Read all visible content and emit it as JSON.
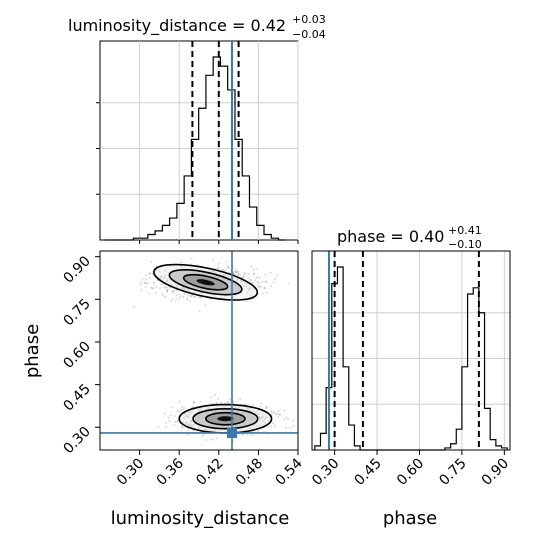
{
  "chart_data": [
    {
      "type": "histogram",
      "panel": "luminosity_distance marginal",
      "title_main": "luminosity_distance = 0.42",
      "title_sup": "+0.03",
      "title_sub": "−0.04",
      "xlim": [
        0.24,
        0.54
      ],
      "x": [
        0.252,
        0.263,
        0.274,
        0.285,
        0.296,
        0.307,
        0.318,
        0.329,
        0.34,
        0.351,
        0.362,
        0.373,
        0.384,
        0.395,
        0.406,
        0.417,
        0.428,
        0.439,
        0.45,
        0.461,
        0.472,
        0.483,
        0.494,
        0.505,
        0.516
      ],
      "counts": [
        0,
        0,
        0,
        0,
        1,
        1,
        3,
        5,
        8,
        12,
        20,
        35,
        55,
        72,
        90,
        100,
        95,
        82,
        55,
        35,
        18,
        8,
        3,
        1,
        0
      ],
      "quantiles": [
        0.38,
        0.42,
        0.45
      ],
      "truth": 0.44,
      "truth_color": "#3a78b0",
      "grid": true
    },
    {
      "type": "scatter",
      "panel": "joint phase vs luminosity_distance",
      "xlabel": "luminosity_distance",
      "ylabel": "phase",
      "xlim": [
        0.24,
        0.54
      ],
      "ylim": [
        0.22,
        0.92
      ],
      "xticks": [
        "0.30",
        "0.36",
        "0.42",
        "0.48",
        "0.54"
      ],
      "yticks": [
        "0.30",
        "0.45",
        "0.60",
        "0.75",
        "0.90"
      ],
      "clusters": [
        {
          "center": [
            0.4,
            0.81
          ],
          "spread": [
            0.04,
            0.025
          ]
        },
        {
          "center": [
            0.43,
            0.33
          ],
          "spread": [
            0.035,
            0.025
          ]
        }
      ],
      "truth": [
        0.44,
        0.28
      ],
      "truth_color": "#3a78b0"
    },
    {
      "type": "histogram",
      "panel": "phase marginal",
      "title_main": "phase = 0.40",
      "title_sup": "+0.41",
      "title_sub": "−0.10",
      "xlabel": "phase",
      "xlim": [
        0.22,
        0.92
      ],
      "xticks": [
        "0.30",
        "0.45",
        "0.60",
        "0.75",
        "0.90"
      ],
      "x": [
        0.24,
        0.26,
        0.28,
        0.3,
        0.32,
        0.34,
        0.36,
        0.38,
        0.4,
        0.42,
        0.44,
        0.46,
        0.48,
        0.5,
        0.52,
        0.54,
        0.56,
        0.58,
        0.6,
        0.62,
        0.64,
        0.66,
        0.68,
        0.7,
        0.72,
        0.74,
        0.76,
        0.78,
        0.8,
        0.82,
        0.84,
        0.86,
        0.88,
        0.9
      ],
      "counts": [
        2,
        8,
        30,
        80,
        88,
        40,
        12,
        2,
        0,
        0,
        0,
        0,
        0,
        0,
        0,
        0,
        0,
        0,
        0,
        0,
        0,
        0,
        0,
        1,
        3,
        10,
        40,
        75,
        78,
        66,
        20,
        5,
        2,
        1
      ],
      "quantiles": [
        0.3,
        0.4,
        0.81
      ],
      "truth": 0.28,
      "truth_color": "#3a78b0",
      "grid": true
    }
  ]
}
